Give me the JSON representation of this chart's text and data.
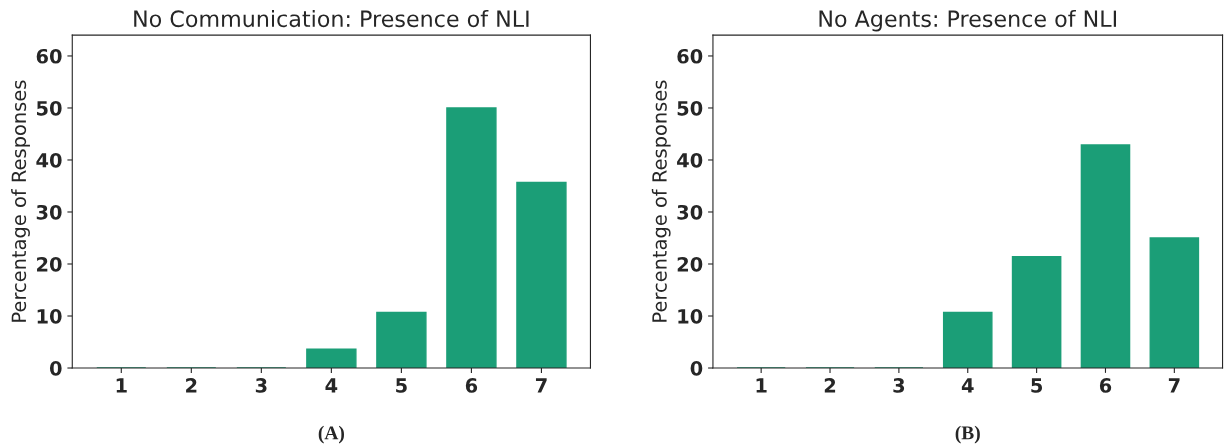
{
  "chart_data": [
    {
      "type": "bar",
      "title": "No Communication: Presence of NLI",
      "ylabel": "Percentage of Responses",
      "categories": [
        "1",
        "2",
        "3",
        "4",
        "5",
        "6",
        "7"
      ],
      "values": [
        0,
        0,
        0,
        3.6,
        10.7,
        50,
        35.7
      ],
      "color": "#1b9e77",
      "ylim": [
        0,
        64
      ],
      "yticks": [
        0,
        10,
        20,
        30,
        40,
        50,
        60
      ],
      "grid": false,
      "annotations": [
        "(A)"
      ]
    },
    {
      "type": "bar",
      "title": "No Agents: Presence of NLI",
      "ylabel": "Percentage of Responses",
      "categories": [
        "1",
        "2",
        "3",
        "4",
        "5",
        "6",
        "7"
      ],
      "values": [
        0,
        0,
        0,
        10.7,
        21.4,
        42.9,
        25
      ],
      "color": "#1b9e77",
      "ylim": [
        0,
        64
      ],
      "yticks": [
        0,
        10,
        20,
        30,
        40,
        50,
        60
      ],
      "grid": false,
      "annotations": [
        "(B)"
      ]
    }
  ]
}
